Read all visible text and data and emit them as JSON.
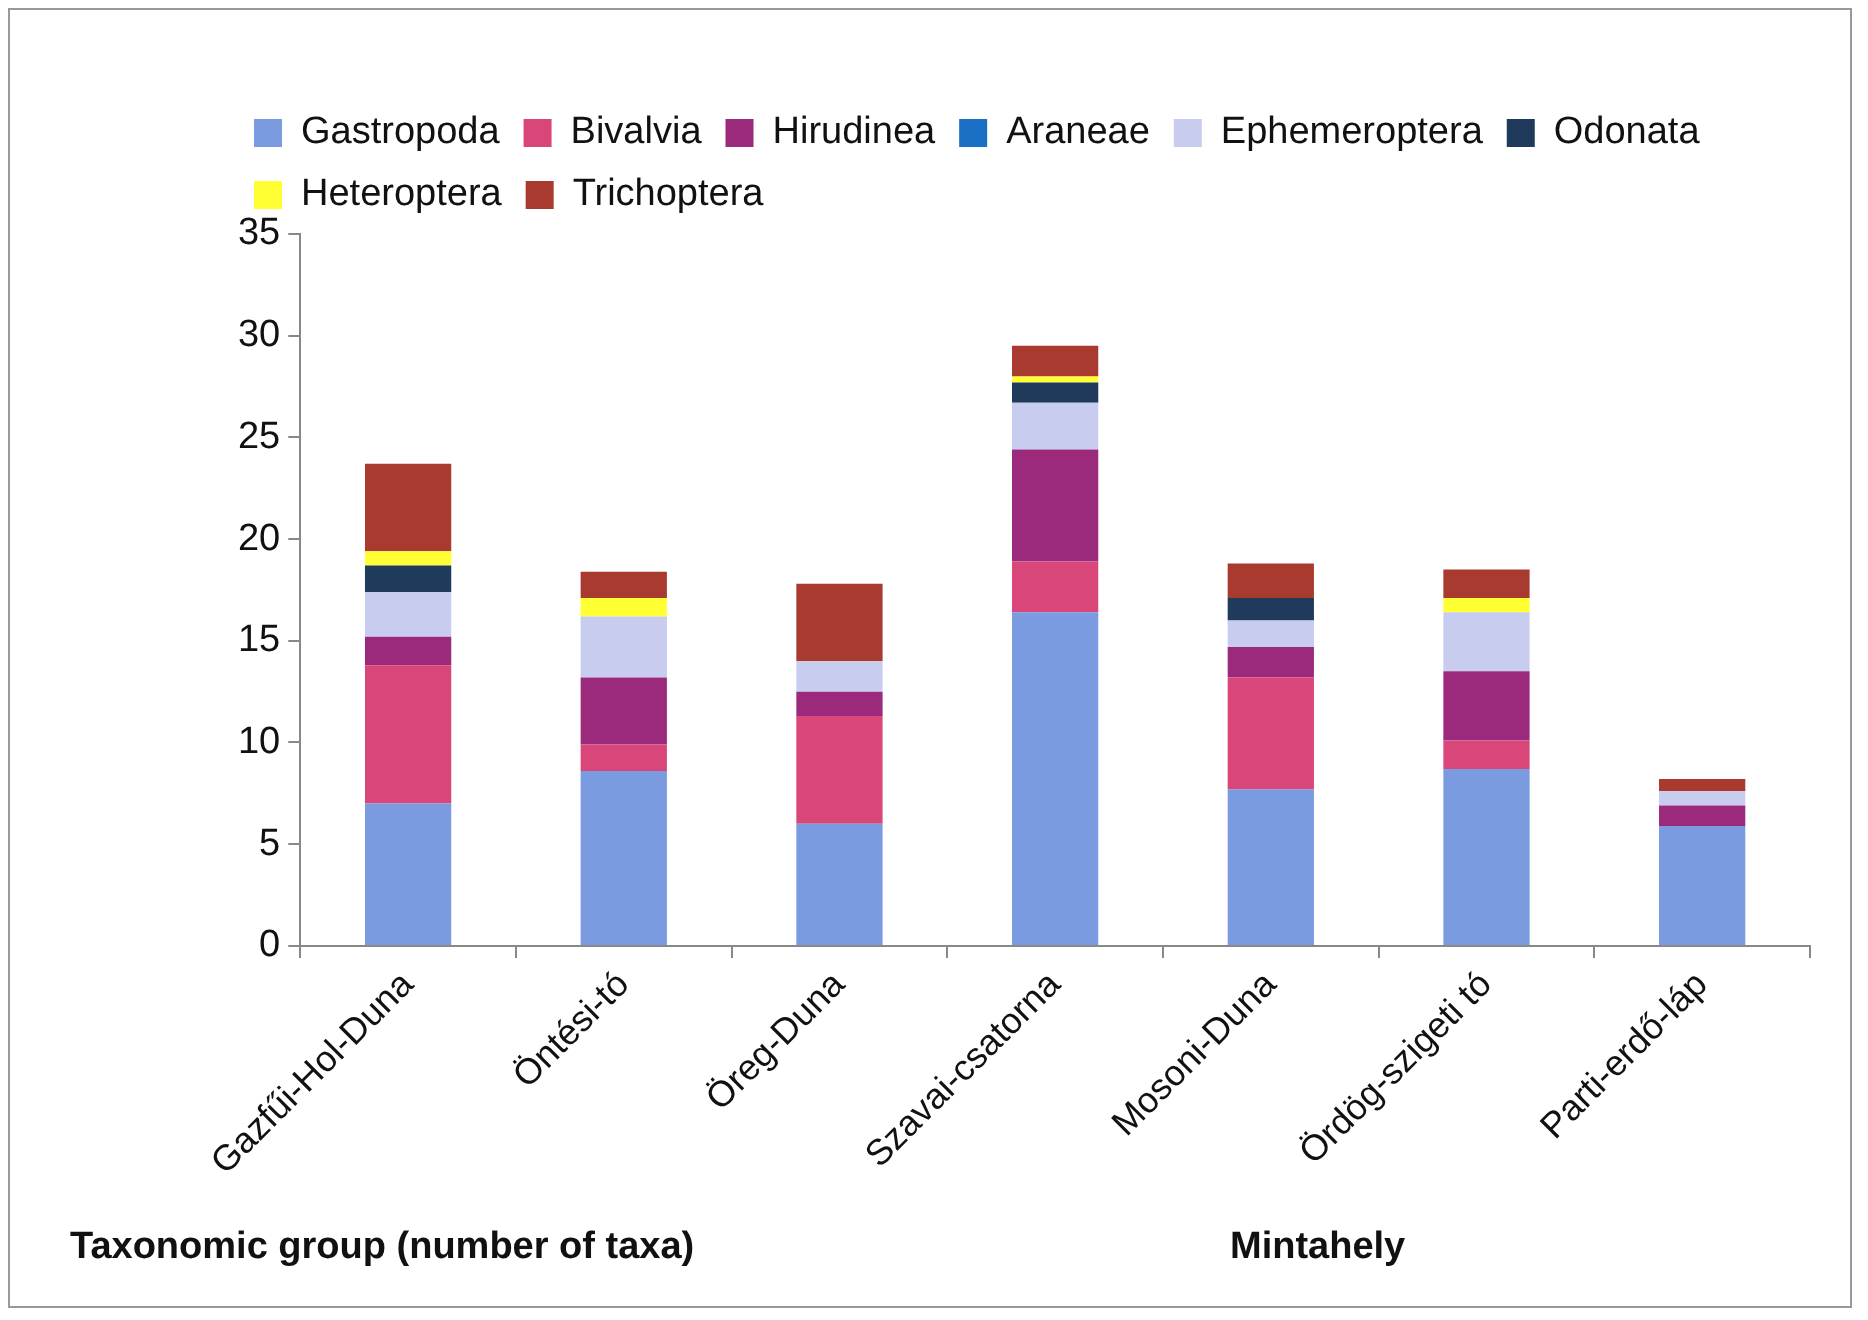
{
  "chart_data": {
    "type": "bar",
    "stacked": true,
    "xlabel": "Mintahely",
    "annotations": [
      "Taxonomic group (number of taxa)"
    ],
    "categories": [
      "Gazfűi-Hol-Duna",
      "Öntési-tó",
      "Öreg-Duna",
      "Szavai-csatorna",
      "Mosoni-Duna",
      "Ördög-szigeti tó",
      "Parti-erdő-láp"
    ],
    "series": [
      {
        "name": "Gastropoda",
        "color": "#7b9be0",
        "values": [
          7.0,
          8.6,
          6.0,
          16.4,
          7.7,
          8.7,
          5.9
        ]
      },
      {
        "name": "Bivalvia",
        "color": "#d9467a",
        "values": [
          6.8,
          1.3,
          5.3,
          2.5,
          5.5,
          1.4,
          0
        ]
      },
      {
        "name": "Hirudinea",
        "color": "#9c2a7c",
        "values": [
          1.4,
          3.3,
          1.2,
          5.5,
          1.5,
          3.4,
          1.0
        ]
      },
      {
        "name": "Araneae",
        "color": "#1a6fc4",
        "values": [
          0,
          0,
          0,
          0,
          0,
          0,
          0
        ]
      },
      {
        "name": "Ephemeroptera",
        "color": "#c8cdf0",
        "values": [
          2.2,
          3.0,
          1.5,
          2.3,
          1.3,
          2.9,
          0.7
        ]
      },
      {
        "name": "Odonata",
        "color": "#1f3a5a",
        "values": [
          1.3,
          0,
          0,
          1.0,
          1.1,
          0,
          0
        ]
      },
      {
        "name": "Heteroptera",
        "color": "#ffff33",
        "values": [
          0.7,
          0.9,
          0,
          0.3,
          0,
          0.7,
          0
        ]
      },
      {
        "name": "Trichoptera",
        "color": "#a83a30",
        "values": [
          4.3,
          1.3,
          3.8,
          1.5,
          1.7,
          1.4,
          0.6
        ]
      }
    ],
    "ylim": [
      0,
      35
    ],
    "yticks": [
      0,
      5,
      10,
      15,
      20,
      25,
      30,
      35
    ],
    "grid": false,
    "legend": "top"
  }
}
